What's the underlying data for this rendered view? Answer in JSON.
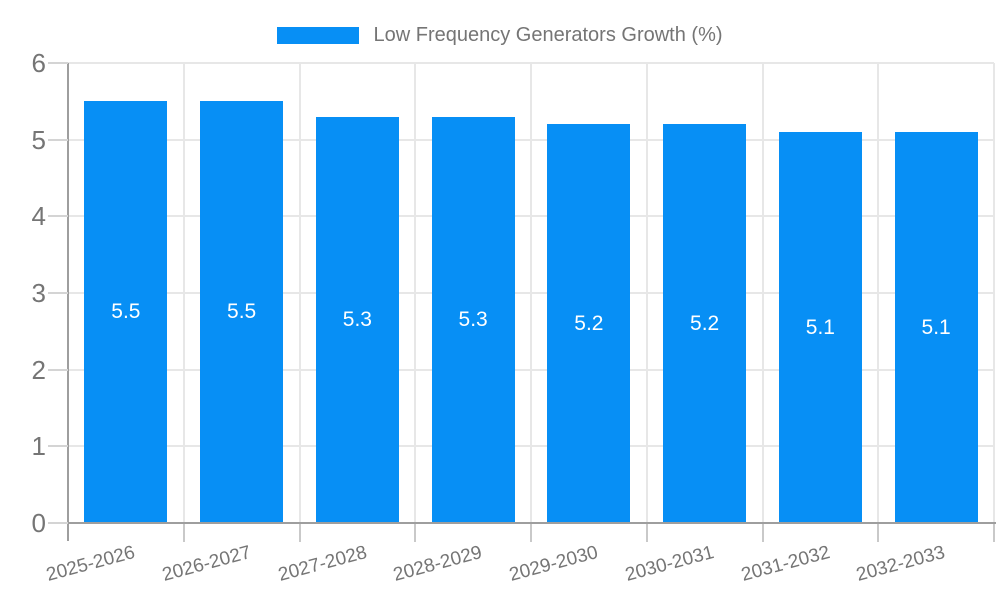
{
  "chart_data": {
    "type": "bar",
    "title": "Low Frequency Generators Growth (%)",
    "categories": [
      "2025-2026",
      "2026-2027",
      "2027-2028",
      "2028-2029",
      "2029-2030",
      "2030-2031",
      "2031-2032",
      "2032-2033"
    ],
    "values": [
      5.5,
      5.5,
      5.3,
      5.3,
      5.2,
      5.2,
      5.1,
      5.1
    ],
    "bar_labels": [
      "5.5",
      "5.5",
      "5.3",
      "5.3",
      "5.2",
      "5.2",
      "5.1",
      "5.1"
    ],
    "y_ticks": [
      "0",
      "1",
      "2",
      "3",
      "4",
      "5",
      "6"
    ],
    "ylim": [
      0,
      6
    ],
    "grid": true,
    "legend_position": "top-center",
    "x_label_rotation_deg": -15,
    "colors": {
      "bar": "#078ff5",
      "grid": "#e7e7e7",
      "axis": "#9e9e9e",
      "axis_text": "#757575",
      "bar_label_text": "#ffffff",
      "background": "#ffffff"
    }
  }
}
